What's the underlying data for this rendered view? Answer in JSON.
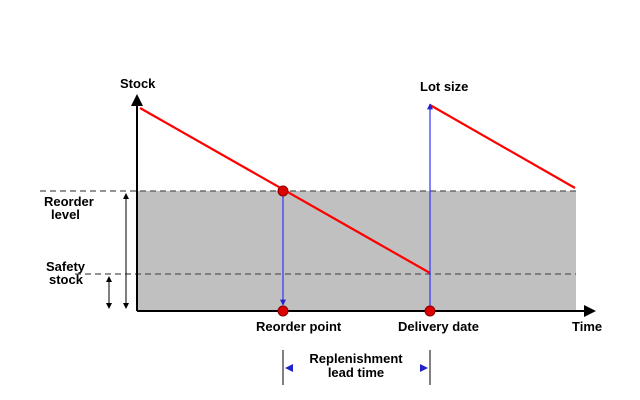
{
  "labels": {
    "y_axis": "Stock",
    "x_axis": "Time",
    "lot_size": "Lot size",
    "reorder_level": [
      "Reorder",
      "level"
    ],
    "safety_stock": [
      "Safety",
      "stock"
    ],
    "reorder_point": "Reorder point",
    "delivery_date": "Delivery date",
    "lead_time": [
      "Replenishment",
      "lead time"
    ]
  },
  "colors": {
    "stock_line": "#ff0000",
    "marker": "#dd0000",
    "lead_arrow": "#3333ff",
    "shaded_zone": "#c0c0c0",
    "axis": "#000000",
    "dashed": "#555555"
  }
}
